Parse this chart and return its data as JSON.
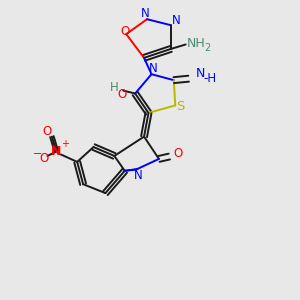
{
  "background_color": "#e8e8e8",
  "figsize": [
    3.0,
    3.0
  ],
  "dpi": 100,
  "xlim": [
    0,
    10
  ],
  "ylim": [
    0,
    10
  ],
  "colors": {
    "black": "#1a1a1a",
    "blue": "#0000ff",
    "red": "#ff0000",
    "teal": "#4a8b6f",
    "yellow": "#b8b800",
    "dark_blue": "#00008b"
  }
}
